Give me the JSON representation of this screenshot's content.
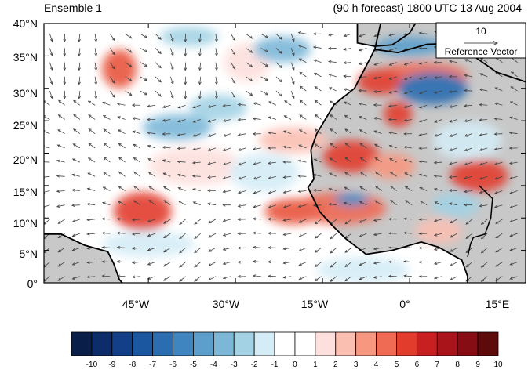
{
  "header": {
    "left_title": "Ensemble 1",
    "right_title": "(90 h forecast) 1800 UTC 13 Aug 2004"
  },
  "map": {
    "lat_labels": [
      "40°N",
      "35°N",
      "30°N",
      "25°N",
      "20°N",
      "15°N",
      "10°N",
      "5°N",
      "0°"
    ],
    "lon_labels": [
      "45°W",
      "30°W",
      "15°W",
      "0°",
      "15°E"
    ],
    "lat_range": [
      0,
      40
    ],
    "lon_range": [
      -63,
      20
    ],
    "land_color": "#c8c8c8",
    "coast_color": "#000000"
  },
  "reference_vector": {
    "magnitude": "10",
    "label": "Reference Vector"
  },
  "colorbar": {
    "labels": [
      "-10",
      "-9",
      "-8",
      "-7",
      "-6",
      "-5",
      "-4",
      "-3",
      "-2",
      "-1",
      "0",
      "1",
      "2",
      "3",
      "4",
      "5",
      "6",
      "7",
      "8",
      "9",
      "10"
    ],
    "colors": [
      "#0a1e4a",
      "#0c2c6a",
      "#123f87",
      "#1b57a0",
      "#2a6db0",
      "#3f86c0",
      "#5c9fcd",
      "#7cb7d8",
      "#a2d2e4",
      "#d4ecf6",
      "#ffffff",
      "#ffffff",
      "#fde0dd",
      "#fbbfb2",
      "#f7977f",
      "#f06b54",
      "#e23c2d",
      "#c81f21",
      "#a9141b",
      "#860d14",
      "#5e0a0b"
    ]
  },
  "anomaly_blobs": [
    {
      "lon": -50,
      "lat": 33,
      "rx": 3,
      "ry": 3,
      "color": "#e8553d"
    },
    {
      "lon": -46,
      "lat": 11,
      "rx": 5,
      "ry": 3,
      "color": "#e23c2d"
    },
    {
      "lon": -10,
      "lat": 19.5,
      "rx": 5,
      "ry": 2.5,
      "color": "#e23c2d"
    },
    {
      "lon": -12,
      "lat": 11.5,
      "rx": 8,
      "ry": 2.5,
      "color": "#f06b54"
    },
    {
      "lon": -20,
      "lat": 11,
      "rx": 5,
      "ry": 2,
      "color": "#e8553d"
    },
    {
      "lon": -2,
      "lat": 26,
      "rx": 2.5,
      "ry": 2,
      "color": "#e23c2d"
    },
    {
      "lon": 12,
      "lat": 16.5,
      "rx": 5,
      "ry": 2.5,
      "color": "#e23c2d"
    },
    {
      "lon": 2,
      "lat": 32,
      "rx": 8,
      "ry": 2,
      "color": "#f06b54"
    },
    {
      "lon": -5,
      "lat": 31,
      "rx": 4,
      "ry": 2,
      "color": "#e23c2d"
    },
    {
      "lon": -3,
      "lat": 18,
      "rx": 4,
      "ry": 2,
      "color": "#f7977f"
    },
    {
      "lon": -20,
      "lat": 22,
      "rx": 6,
      "ry": 2,
      "color": "#fbbfb2"
    },
    {
      "lon": -37,
      "lat": 18,
      "rx": 8,
      "ry": 3,
      "color": "#fde0dd"
    },
    {
      "lon": -28,
      "lat": 34,
      "rx": 4,
      "ry": 3,
      "color": "#fde0dd"
    },
    {
      "lon": 5,
      "lat": 8,
      "rx": 4,
      "ry": 2,
      "color": "#fbbfb2"
    },
    {
      "lon": 4,
      "lat": 30,
      "rx": 6,
      "ry": 2.5,
      "color": "#2a6db0"
    },
    {
      "lon": -10,
      "lat": 12.8,
      "rx": 3,
      "ry": 1,
      "color": "#3f86c0"
    },
    {
      "lon": 0,
      "lat": 36.5,
      "rx": 6,
      "ry": 1.5,
      "color": "#5c9fcd"
    },
    {
      "lon": -40,
      "lat": 24,
      "rx": 6,
      "ry": 2,
      "color": "#7cb7d8"
    },
    {
      "lon": -22,
      "lat": 36,
      "rx": 5,
      "ry": 2,
      "color": "#7cb7d8"
    },
    {
      "lon": -38,
      "lat": 38,
      "rx": 5,
      "ry": 1.5,
      "color": "#a2d2e4"
    },
    {
      "lon": -25,
      "lat": 17,
      "rx": 6,
      "ry": 3,
      "color": "#d4ecf6"
    },
    {
      "lon": -45,
      "lat": 6,
      "rx": 8,
      "ry": 2,
      "color": "#d4ecf6"
    },
    {
      "lon": 10,
      "lat": 22,
      "rx": 6,
      "ry": 3,
      "color": "#d4ecf6"
    },
    {
      "lon": -8,
      "lat": 2,
      "rx": 8,
      "ry": 2,
      "color": "#d4ecf6"
    },
    {
      "lon": -33,
      "lat": 27,
      "rx": 5,
      "ry": 2,
      "color": "#a2d2e4"
    },
    {
      "lon": 8,
      "lat": 12,
      "rx": 4,
      "ry": 2,
      "color": "#a2d2e4"
    }
  ]
}
